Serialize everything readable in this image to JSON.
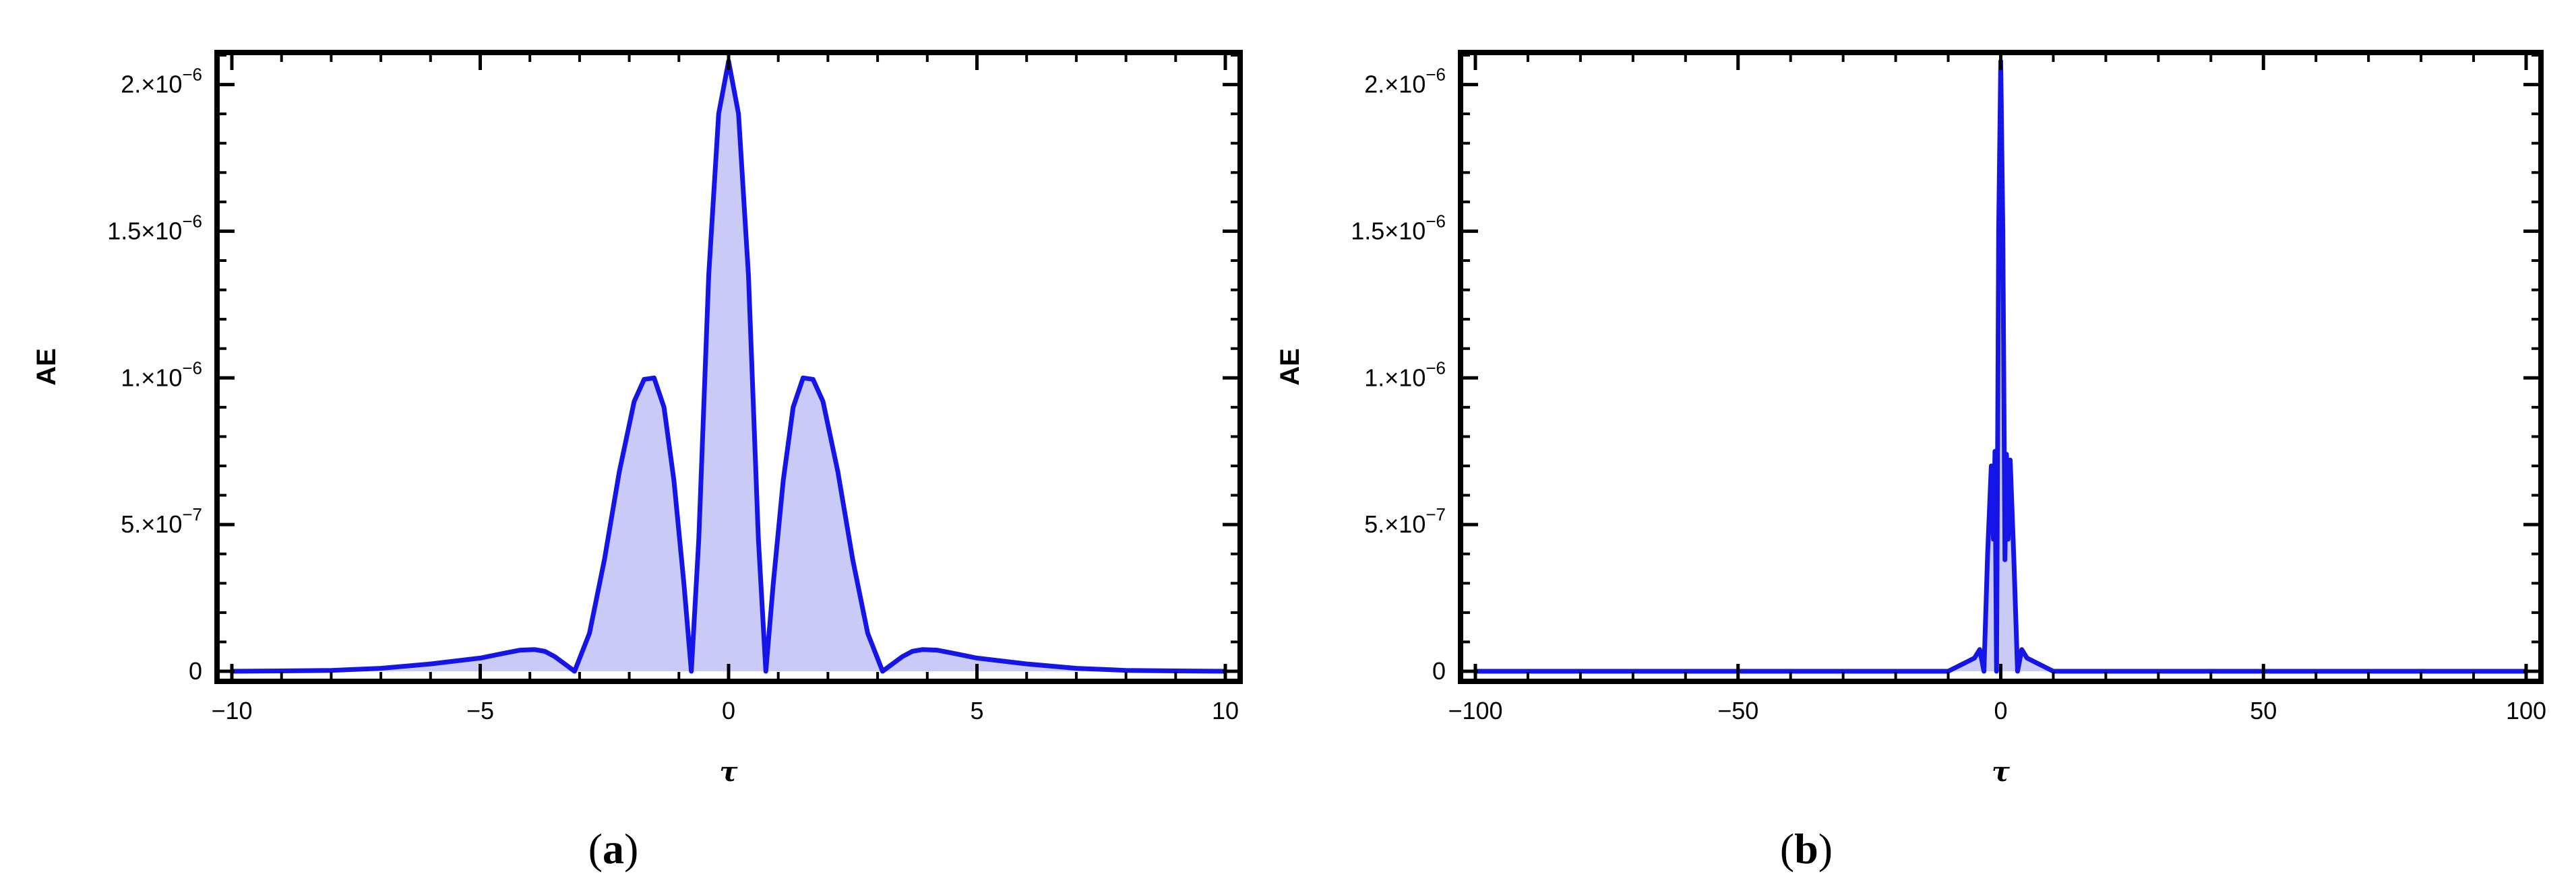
{
  "chart_data": [
    {
      "type": "area",
      "panel": "a",
      "caption_open": "(",
      "caption_letter": "a",
      "caption_close": ")",
      "xlabel": "τ",
      "ylabel": "AE",
      "xlim": [
        -10,
        10
      ],
      "ylim": [
        0,
        2.1e-06
      ],
      "xticks": [
        -10,
        -5,
        0,
        5,
        10
      ],
      "xtick_labels": [
        "−10",
        "−5",
        "0",
        "5",
        "10"
      ],
      "yticks": [
        0,
        5e-07,
        1e-06,
        1.5e-06,
        2e-06
      ],
      "ytick_mantissa": [
        "0",
        "5.×10",
        "1.×10",
        "1.5×10",
        "2.×10"
      ],
      "ytick_exponent": [
        "",
        "−7",
        "−6",
        "−6",
        "−6"
      ],
      "grid": false,
      "filled": true,
      "line_color": "#1515e8",
      "fill_color": "#c9cbf6",
      "x": [
        -10,
        -9,
        -8,
        -7,
        -6,
        -5,
        -4.5,
        -4.2,
        -3.9,
        -3.7,
        -3.5,
        -3.3,
        -3.1,
        -2.8,
        -2.5,
        -2.2,
        -1.9,
        -1.7,
        -1.5,
        -1.3,
        -1.1,
        -0.9,
        -0.75,
        -0.6,
        -0.4,
        -0.2,
        0,
        0.2,
        0.4,
        0.6,
        0.75,
        0.9,
        1.1,
        1.3,
        1.5,
        1.7,
        1.9,
        2.2,
        2.5,
        2.8,
        3.1,
        3.3,
        3.5,
        3.7,
        3.9,
        4.2,
        4.5,
        5,
        6,
        7,
        8,
        9,
        10
      ],
      "y": [
        0,
        1e-09,
        3e-09,
        1e-08,
        2.5e-08,
        4.5e-08,
        6.2e-08,
        7.2e-08,
        7.4e-08,
        6.8e-08,
        5e-08,
        2.5e-08,
        0,
        1.3e-07,
        3.8e-07,
        6.8e-07,
        9.2e-07,
        9.95e-07,
        1e-06,
        9e-07,
        6.5e-07,
        3e-07,
        0,
        4.5e-07,
        1.35e-06,
        1.9e-06,
        2.08e-06,
        1.9e-06,
        1.35e-06,
        4.5e-07,
        0,
        3e-07,
        6.5e-07,
        9e-07,
        1e-06,
        9.95e-07,
        9.2e-07,
        6.8e-07,
        3.8e-07,
        1.3e-07,
        0,
        2.5e-08,
        5e-08,
        6.8e-08,
        7.4e-08,
        7.2e-08,
        6.2e-08,
        4.5e-08,
        2.5e-08,
        1e-08,
        3e-09,
        1e-09,
        0
      ]
    },
    {
      "type": "area",
      "panel": "b",
      "caption_open": "(",
      "caption_letter": "b",
      "caption_close": ")",
      "xlabel": "τ",
      "ylabel": "AE",
      "xlim": [
        -100,
        100
      ],
      "ylim": [
        0,
        2.1e-06
      ],
      "xticks": [
        -100,
        -50,
        0,
        50,
        100
      ],
      "xtick_labels": [
        "−100",
        "−50",
        "0",
        "50",
        "100"
      ],
      "yticks": [
        0,
        5e-07,
        1e-06,
        1.5e-06,
        2e-06
      ],
      "ytick_mantissa": [
        "0",
        "5.×10",
        "1.×10",
        "1.5×10",
        "2.×10"
      ],
      "ytick_exponent": [
        "",
        "−7",
        "−6",
        "−6",
        "−6"
      ],
      "grid": false,
      "filled": true,
      "line_color": "#1515e8",
      "fill_color": "#c9cbf6",
      "x": [
        -100,
        -10,
        -5,
        -4,
        -3.2,
        -2.5,
        -1.8,
        -1.4,
        -1.1,
        -0.8,
        -0.4,
        0,
        0.4,
        0.8,
        1.1,
        1.4,
        1.8,
        2.5,
        3.2,
        4,
        5,
        10,
        100
      ],
      "y": [
        0,
        0,
        4.5e-08,
        7.4e-08,
        0,
        4e-07,
        7e-07,
        4.5e-07,
        7.5e-07,
        0,
        1.5e-06,
        2.08e-06,
        1.5e-06,
        3.8e-07,
        7.4e-07,
        4.5e-07,
        7.2e-07,
        3.8e-07,
        0,
        7.4e-08,
        4.5e-08,
        0,
        0
      ]
    }
  ]
}
